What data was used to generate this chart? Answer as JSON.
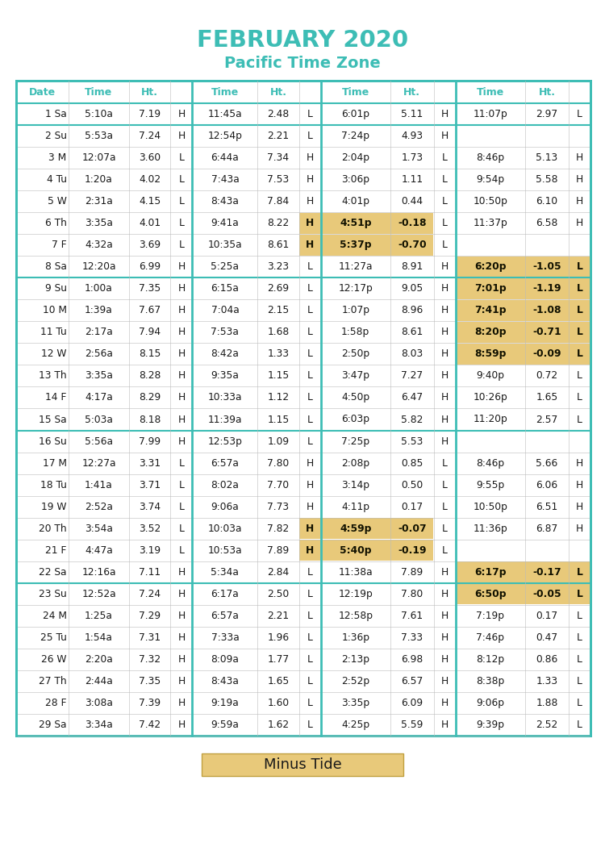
{
  "title1": "FEBRUARY 2020",
  "title2": "Pacific Time Zone",
  "title_color": "#3dbdb5",
  "text_color": "#1a1a1a",
  "highlight_gold": "#e8c97a",
  "border_color": "#3dbdb5",
  "rows": [
    [
      "1 Sa",
      "5:10a",
      "7.19",
      "H",
      "11:45a",
      "2.48",
      "L",
      "6:01p",
      "5.11",
      "H",
      "11:07p",
      "2.97",
      "L"
    ],
    [
      "2 Su",
      "5:53a",
      "7.24",
      "H",
      "12:54p",
      "2.21",
      "L",
      "7:24p",
      "4.93",
      "H",
      "",
      "",
      ""
    ],
    [
      "3 M",
      "12:07a",
      "3.60",
      "L",
      "6:44a",
      "7.34",
      "H",
      "2:04p",
      "1.73",
      "L",
      "8:46p",
      "5.13",
      "H"
    ],
    [
      "4 Tu",
      "1:20a",
      "4.02",
      "L",
      "7:43a",
      "7.53",
      "H",
      "3:06p",
      "1.11",
      "L",
      "9:54p",
      "5.58",
      "H"
    ],
    [
      "5 W",
      "2:31a",
      "4.15",
      "L",
      "8:43a",
      "7.84",
      "H",
      "4:01p",
      "0.44",
      "L",
      "10:50p",
      "6.10",
      "H"
    ],
    [
      "6 Th",
      "3:35a",
      "4.01",
      "L",
      "9:41a",
      "8.22",
      "H",
      "4:51p",
      "-0.18",
      "L",
      "11:37p",
      "6.58",
      "H"
    ],
    [
      "7 F",
      "4:32a",
      "3.69",
      "L",
      "10:35a",
      "8.61",
      "H",
      "5:37p",
      "-0.70",
      "L",
      "",
      "",
      ""
    ],
    [
      "8 Sa",
      "12:20a",
      "6.99",
      "H",
      "5:25a",
      "3.23",
      "L",
      "11:27a",
      "8.91",
      "H",
      "6:20p",
      "-1.05",
      "L"
    ],
    [
      "9 Su",
      "1:00a",
      "7.35",
      "H",
      "6:15a",
      "2.69",
      "L",
      "12:17p",
      "9.05",
      "H",
      "7:01p",
      "-1.19",
      "L"
    ],
    [
      "10 M",
      "1:39a",
      "7.67",
      "H",
      "7:04a",
      "2.15",
      "L",
      "1:07p",
      "8.96",
      "H",
      "7:41p",
      "-1.08",
      "L"
    ],
    [
      "11 Tu",
      "2:17a",
      "7.94",
      "H",
      "7:53a",
      "1.68",
      "L",
      "1:58p",
      "8.61",
      "H",
      "8:20p",
      "-0.71",
      "L"
    ],
    [
      "12 W",
      "2:56a",
      "8.15",
      "H",
      "8:42a",
      "1.33",
      "L",
      "2:50p",
      "8.03",
      "H",
      "8:59p",
      "-0.09",
      "L"
    ],
    [
      "13 Th",
      "3:35a",
      "8.28",
      "H",
      "9:35a",
      "1.15",
      "L",
      "3:47p",
      "7.27",
      "H",
      "9:40p",
      "0.72",
      "L"
    ],
    [
      "14 F",
      "4:17a",
      "8.29",
      "H",
      "10:33a",
      "1.12",
      "L",
      "4:50p",
      "6.47",
      "H",
      "10:26p",
      "1.65",
      "L"
    ],
    [
      "15 Sa",
      "5:03a",
      "8.18",
      "H",
      "11:39a",
      "1.15",
      "L",
      "6:03p",
      "5.82",
      "H",
      "11:20p",
      "2.57",
      "L"
    ],
    [
      "16 Su",
      "5:56a",
      "7.99",
      "H",
      "12:53p",
      "1.09",
      "L",
      "7:25p",
      "5.53",
      "H",
      "",
      "",
      ""
    ],
    [
      "17 M",
      "12:27a",
      "3.31",
      "L",
      "6:57a",
      "7.80",
      "H",
      "2:08p",
      "0.85",
      "L",
      "8:46p",
      "5.66",
      "H"
    ],
    [
      "18 Tu",
      "1:41a",
      "3.71",
      "L",
      "8:02a",
      "7.70",
      "H",
      "3:14p",
      "0.50",
      "L",
      "9:55p",
      "6.06",
      "H"
    ],
    [
      "19 W",
      "2:52a",
      "3.74",
      "L",
      "9:06a",
      "7.73",
      "H",
      "4:11p",
      "0.17",
      "L",
      "10:50p",
      "6.51",
      "H"
    ],
    [
      "20 Th",
      "3:54a",
      "3.52",
      "L",
      "10:03a",
      "7.82",
      "H",
      "4:59p",
      "-0.07",
      "L",
      "11:36p",
      "6.87",
      "H"
    ],
    [
      "21 F",
      "4:47a",
      "3.19",
      "L",
      "10:53a",
      "7.89",
      "H",
      "5:40p",
      "-0.19",
      "L",
      "",
      "",
      ""
    ],
    [
      "22 Sa",
      "12:16a",
      "7.11",
      "H",
      "5:34a",
      "2.84",
      "L",
      "11:38a",
      "7.89",
      "H",
      "6:17p",
      "-0.17",
      "L"
    ],
    [
      "23 Su",
      "12:52a",
      "7.24",
      "H",
      "6:17a",
      "2.50",
      "L",
      "12:19p",
      "7.80",
      "H",
      "6:50p",
      "-0.05",
      "L"
    ],
    [
      "24 M",
      "1:25a",
      "7.29",
      "H",
      "6:57a",
      "2.21",
      "L",
      "12:58p",
      "7.61",
      "H",
      "7:19p",
      "0.17",
      "L"
    ],
    [
      "25 Tu",
      "1:54a",
      "7.31",
      "H",
      "7:33a",
      "1.96",
      "L",
      "1:36p",
      "7.33",
      "H",
      "7:46p",
      "0.47",
      "L"
    ],
    [
      "26 W",
      "2:20a",
      "7.32",
      "H",
      "8:09a",
      "1.77",
      "L",
      "2:13p",
      "6.98",
      "H",
      "8:12p",
      "0.86",
      "L"
    ],
    [
      "27 Th",
      "2:44a",
      "7.35",
      "H",
      "8:43a",
      "1.65",
      "L",
      "2:52p",
      "6.57",
      "H",
      "8:38p",
      "1.33",
      "L"
    ],
    [
      "28 F",
      "3:08a",
      "7.39",
      "H",
      "9:19a",
      "1.60",
      "L",
      "3:35p",
      "6.09",
      "H",
      "9:06p",
      "1.88",
      "L"
    ],
    [
      "29 Sa",
      "3:34a",
      "7.42",
      "H",
      "9:59a",
      "1.62",
      "L",
      "4:25p",
      "5.59",
      "H",
      "9:39p",
      "2.52",
      "L"
    ]
  ],
  "gold_highlights": [
    [
      5,
      [
        6,
        7,
        8
      ]
    ],
    [
      6,
      [
        6,
        7,
        8
      ]
    ],
    [
      7,
      [
        10,
        11,
        12
      ]
    ],
    [
      8,
      [
        10,
        11,
        12
      ]
    ],
    [
      9,
      [
        10,
        11,
        12
      ]
    ],
    [
      10,
      [
        10,
        11,
        12
      ]
    ],
    [
      11,
      [
        10,
        11,
        12
      ]
    ],
    [
      19,
      [
        6,
        7,
        8
      ]
    ],
    [
      20,
      [
        6,
        7,
        8
      ]
    ],
    [
      21,
      [
        10,
        11,
        12
      ]
    ],
    [
      22,
      [
        10,
        11,
        12
      ]
    ]
  ],
  "week_sep_after": [
    0,
    7,
    14,
    21
  ],
  "legend_text": "Minus Tide"
}
